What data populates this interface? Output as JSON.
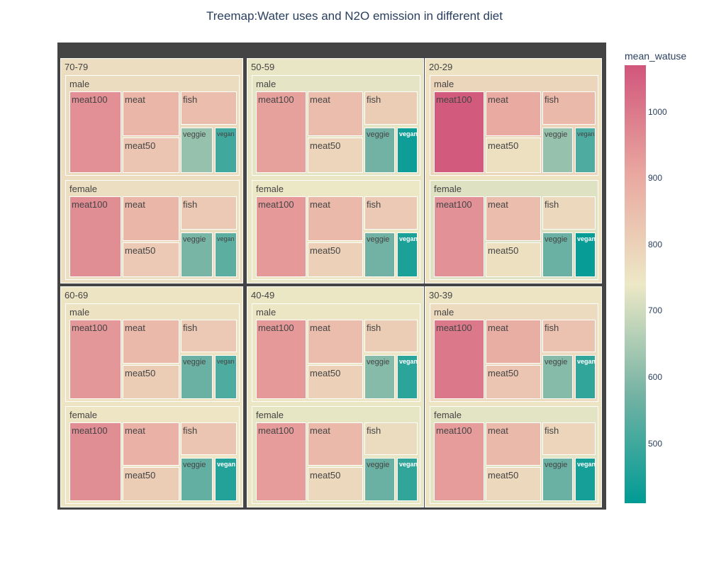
{
  "chart_data": {
    "type": "treemap",
    "title": "Treemap:Water uses and N2O emission in different diet",
    "color_metric": "mean_watuse",
    "colorscale": [
      "#009B95",
      "#75B3A4",
      "#EDE8C6",
      "#E9A8A0",
      "#D1567B"
    ],
    "color_range": [
      410,
      1070
    ],
    "colorbar": {
      "title": "mean_watuse",
      "ticks": [
        500,
        600,
        700,
        800,
        900,
        1000
      ]
    },
    "age_groups": [
      {
        "name": "70-79",
        "sexes": [
          {
            "name": "male",
            "diets": [
              {
                "name": "meat100",
                "watuse": 955
              },
              {
                "name": "meat",
                "watuse": 870
              },
              {
                "name": "meat50",
                "watuse": 830
              },
              {
                "name": "fish",
                "watuse": 850
              },
              {
                "name": "veggie",
                "watuse": 620
              },
              {
                "name": "vegan",
                "watuse": 500
              }
            ]
          },
          {
            "name": "female",
            "diets": [
              {
                "name": "meat100",
                "watuse": 960
              },
              {
                "name": "meat",
                "watuse": 870
              },
              {
                "name": "meat50",
                "watuse": 820
              },
              {
                "name": "fish",
                "watuse": 820
              },
              {
                "name": "veggie",
                "watuse": 580
              },
              {
                "name": "vegan",
                "watuse": 540
              }
            ]
          }
        ]
      },
      {
        "name": "50-59",
        "sexes": [
          {
            "name": "male",
            "diets": [
              {
                "name": "meat100",
                "watuse": 920
              },
              {
                "name": "meat",
                "watuse": 850
              },
              {
                "name": "meat50",
                "watuse": 790
              },
              {
                "name": "fish",
                "watuse": 810
              },
              {
                "name": "veggie",
                "watuse": 570
              },
              {
                "name": "vegan",
                "watuse": 430
              }
            ]
          },
          {
            "name": "female",
            "diets": [
              {
                "name": "meat100",
                "watuse": 935
              },
              {
                "name": "meat",
                "watuse": 860
              },
              {
                "name": "meat50",
                "watuse": 800
              },
              {
                "name": "fish",
                "watuse": 820
              },
              {
                "name": "veggie",
                "watuse": 570
              },
              {
                "name": "vegan",
                "watuse": 450
              }
            ]
          }
        ]
      },
      {
        "name": "20-29",
        "sexes": [
          {
            "name": "male",
            "diets": [
              {
                "name": "meat100",
                "watuse": 1060
              },
              {
                "name": "meat",
                "watuse": 900
              },
              {
                "name": "meat50",
                "watuse": 760
              },
              {
                "name": "fish",
                "watuse": 860
              },
              {
                "name": "veggie",
                "watuse": 620
              },
              {
                "name": "vegan",
                "watuse": 520
              }
            ]
          },
          {
            "name": "female",
            "diets": [
              {
                "name": "meat100",
                "watuse": 950
              },
              {
                "name": "meat",
                "watuse": 850
              },
              {
                "name": "meat50",
                "watuse": 760
              },
              {
                "name": "fish",
                "watuse": 780
              },
              {
                "name": "veggie",
                "watuse": 560
              },
              {
                "name": "vegan",
                "watuse": 420
              }
            ]
          }
        ]
      },
      {
        "name": "60-69",
        "sexes": [
          {
            "name": "male",
            "diets": [
              {
                "name": "meat100",
                "watuse": 940
              },
              {
                "name": "meat",
                "watuse": 860
              },
              {
                "name": "meat50",
                "watuse": 810
              },
              {
                "name": "fish",
                "watuse": 820
              },
              {
                "name": "veggie",
                "watuse": 560
              },
              {
                "name": "vegan",
                "watuse": 520
              }
            ]
          },
          {
            "name": "female",
            "diets": [
              {
                "name": "meat100",
                "watuse": 960
              },
              {
                "name": "meat",
                "watuse": 880
              },
              {
                "name": "meat50",
                "watuse": 810
              },
              {
                "name": "fish",
                "watuse": 830
              },
              {
                "name": "veggie",
                "watuse": 550
              },
              {
                "name": "vegan",
                "watuse": 460
              }
            ]
          }
        ]
      },
      {
        "name": "40-49",
        "sexes": [
          {
            "name": "male",
            "diets": [
              {
                "name": "meat100",
                "watuse": 935
              },
              {
                "name": "meat",
                "watuse": 850
              },
              {
                "name": "meat50",
                "watuse": 800
              },
              {
                "name": "fish",
                "watuse": 810
              },
              {
                "name": "veggie",
                "watuse": 600
              },
              {
                "name": "vegan",
                "watuse": 470
              }
            ]
          },
          {
            "name": "female",
            "diets": [
              {
                "name": "meat100",
                "watuse": 930
              },
              {
                "name": "meat",
                "watuse": 860
              },
              {
                "name": "meat50",
                "watuse": 780
              },
              {
                "name": "fish",
                "watuse": 770
              },
              {
                "name": "veggie",
                "watuse": 560
              },
              {
                "name": "vegan",
                "watuse": 480
              }
            ]
          }
        ]
      },
      {
        "name": "30-39",
        "sexes": [
          {
            "name": "male",
            "diets": [
              {
                "name": "meat100",
                "watuse": 1000
              },
              {
                "name": "meat",
                "watuse": 890
              },
              {
                "name": "meat50",
                "watuse": 830
              },
              {
                "name": "fish",
                "watuse": 840
              },
              {
                "name": "veggie",
                "watuse": 600
              },
              {
                "name": "vegan",
                "watuse": 480
              }
            ]
          },
          {
            "name": "female",
            "diets": [
              {
                "name": "meat100",
                "watuse": 930
              },
              {
                "name": "meat",
                "watuse": 860
              },
              {
                "name": "meat50",
                "watuse": 780
              },
              {
                "name": "fish",
                "watuse": 790
              },
              {
                "name": "veggie",
                "watuse": 560
              },
              {
                "name": "vegan",
                "watuse": 440
              }
            ]
          }
        ]
      }
    ]
  }
}
